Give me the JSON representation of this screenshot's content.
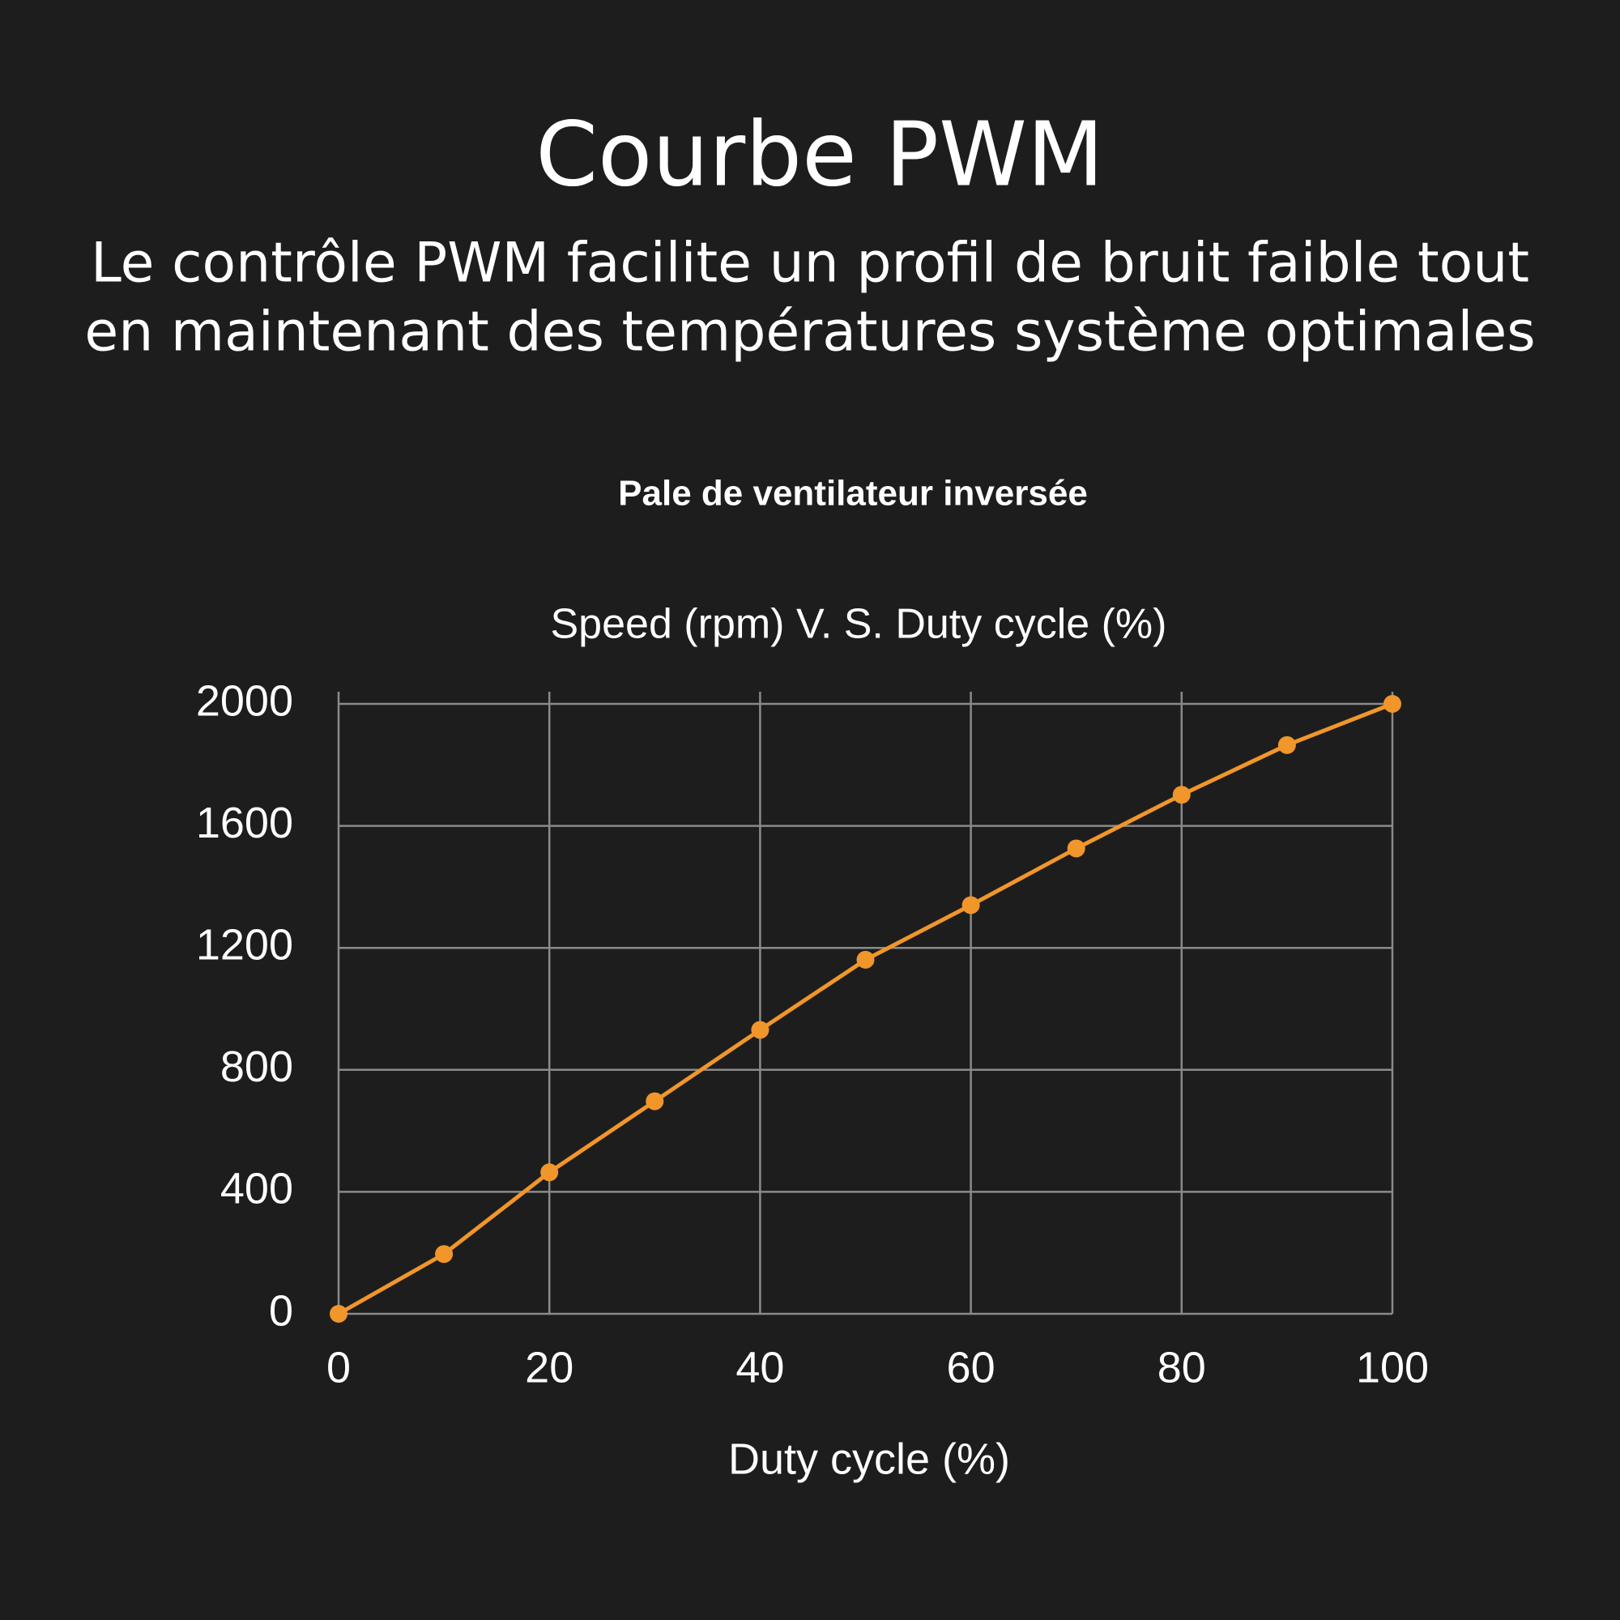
{
  "header": {
    "title": "Courbe PWM",
    "subtitle": [
      "Le contrôle PWM facilite un profil de bruit faible tout",
      "en maintenant des températures système optimales"
    ]
  },
  "chart_data": {
    "type": "line",
    "heading": "Pale de ventilateur inversée",
    "title": "Speed (rpm) V. S. Duty cycle (%)",
    "x_label": "Duty cycle (%)",
    "x": [
      0,
      10,
      20,
      30,
      40,
      50,
      60,
      70,
      80,
      90,
      100
    ],
    "series": [
      {
        "color": "#f0962a",
        "values": [
          0,
          196,
          464,
          697,
          931,
          1161,
          1340,
          1526,
          1702,
          1865,
          2000
        ]
      }
    ],
    "xlim": [
      0,
      100
    ],
    "xticks": [
      0,
      20,
      40,
      60,
      80,
      100
    ],
    "ylim": [
      0,
      2000
    ],
    "yticks": [
      0,
      400,
      800,
      1200,
      1600,
      2000
    ],
    "grid": true
  }
}
